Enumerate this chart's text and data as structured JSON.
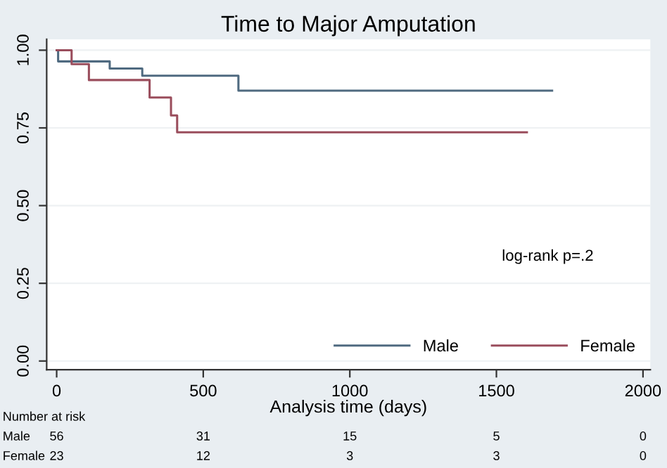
{
  "chart_data": {
    "type": "step",
    "title": "Time to Major Amputation",
    "xlabel": "Analysis time (days)",
    "series": [
      {
        "name": "Male",
        "color": "#4f6a80",
        "x": [
          0,
          5,
          181,
          292,
          620,
          1690
        ],
        "values": [
          1.0,
          0.964,
          0.941,
          0.918,
          0.87,
          0.87
        ]
      },
      {
        "name": "Female",
        "color": "#9a4d5c",
        "x": [
          0,
          51,
          110,
          317,
          390,
          411,
          1604
        ],
        "values": [
          1.0,
          0.955,
          0.904,
          0.848,
          0.79,
          0.736,
          0.736
        ]
      }
    ],
    "xlim": [
      -34,
      2025
    ],
    "xticks": [
      0,
      500,
      1000,
      1500,
      2000
    ],
    "ylim": [
      -0.028,
      1.035
    ],
    "yticks": [
      {
        "value": 0,
        "label": "0.00"
      },
      {
        "value": 0.25,
        "label": "0.25"
      },
      {
        "value": 0.5,
        "label": "0.50"
      },
      {
        "value": 0.75,
        "label": "0.75"
      },
      {
        "value": 1,
        "label": "1.00"
      }
    ],
    "grid": "y",
    "legend": "bottom right",
    "annotations": [
      "log-rank p=.2",
      "Number at risk",
      "Male",
      "56",
      "31",
      "15",
      "5",
      "0",
      "Female",
      "23",
      "12",
      "3",
      "3",
      "0"
    ]
  }
}
